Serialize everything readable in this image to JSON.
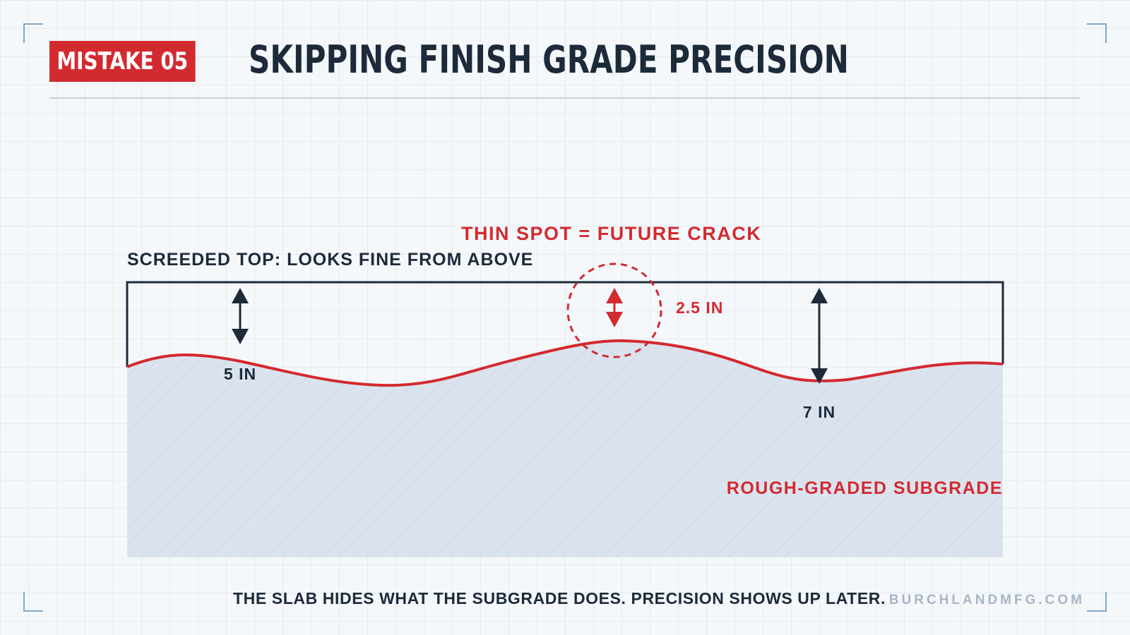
{
  "header": {
    "badge_label": "MISTAKE 05",
    "title": "SKIPPING FINISH GRADE PRECISION"
  },
  "diagram": {
    "top_label": "SCREEDED TOP: LOOKS FINE FROM ABOVE",
    "warning_label": "THIN SPOT = FUTURE CRACK",
    "subgrade_label": "ROUGH-GRADED SUBGRADE",
    "measurements": [
      {
        "id": "left",
        "label": "5 IN",
        "color": "#1c2a3a"
      },
      {
        "id": "center",
        "label": "2.5 IN",
        "color": "#d32a30"
      },
      {
        "id": "right",
        "label": "7 IN",
        "color": "#1c2a3a"
      }
    ],
    "colors": {
      "accent": "#d32a30",
      "dark": "#1c2a3a",
      "subgrade_fill": "#dbe4ee"
    }
  },
  "footer": {
    "caption": "THE SLAB HIDES WHAT THE SUBGRADE DOES. PRECISION SHOWS UP LATER.",
    "brand": "BURCHLANDMFG.COM"
  }
}
